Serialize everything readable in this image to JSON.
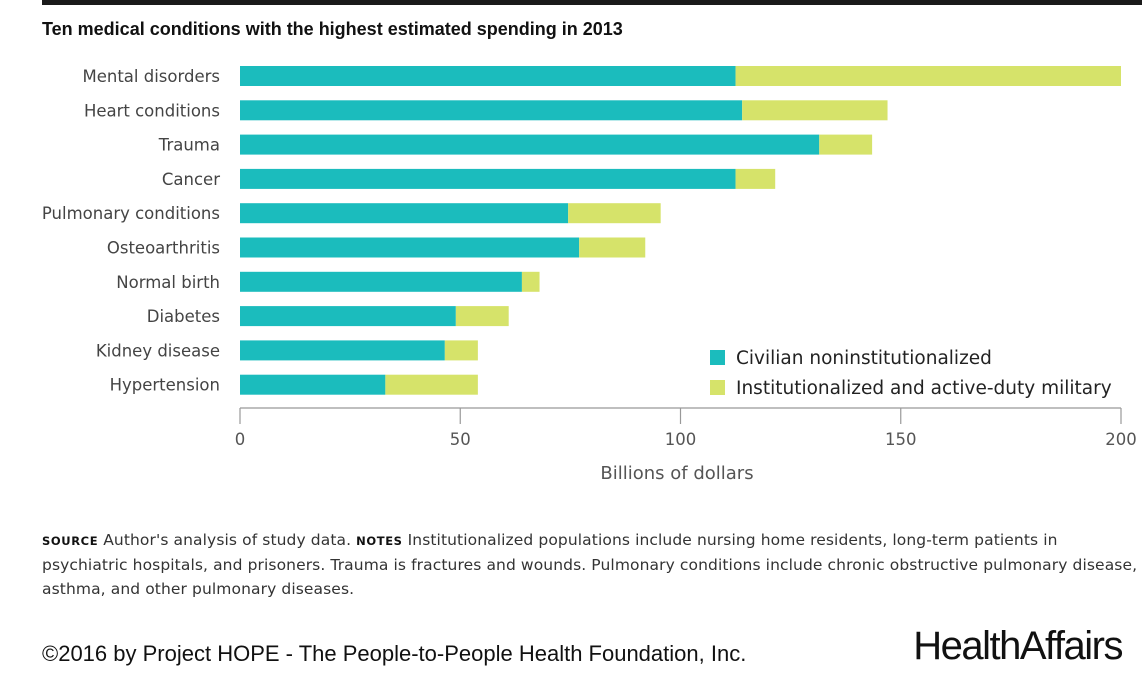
{
  "header": {
    "title": "Ten medical conditions with the highest estimated spending in 2013"
  },
  "chart_data": {
    "type": "bar",
    "orientation": "horizontal",
    "stacked": true,
    "categories": [
      "Mental disorders",
      "Heart conditions",
      "Trauma",
      "Cancer",
      "Pulmonary conditions",
      "Osteoarthritis",
      "Normal birth",
      "Diabetes",
      "Kidney disease",
      "Hypertension"
    ],
    "series": [
      {
        "name": "Civilian noninstitutionalized",
        "color": "#1bbcbd",
        "values": [
          112.5,
          114,
          131.5,
          112.5,
          74.5,
          77,
          64,
          49,
          46.5,
          33
        ]
      },
      {
        "name": "Institutionalized and active-duty military",
        "color": "#d6e36a",
        "values": [
          87.5,
          33,
          12,
          9,
          21,
          15,
          4,
          12,
          7.5,
          21
        ]
      }
    ],
    "xlabel": "Billions of dollars",
    "xlim": [
      0,
      200
    ],
    "xticks": [
      "0",
      "50",
      "100",
      "150",
      "200"
    ],
    "legend_position": "bottom-right",
    "grid": false
  },
  "footer": {
    "source_tag": "source",
    "source_text": "Author's analysis of study data.",
    "notes_tag": "notes",
    "notes_text": "Institutionalized populations include nursing home residents, long-term patients in psychiatric hospitals, and prisoners. Trauma is fractures and wounds. Pulmonary conditions include chronic obstructive pulmonary disease, asthma, and other pulmonary diseases.",
    "copyright": "©2016 by Project HOPE - The People-to-People Health Foundation, Inc.",
    "logo": "HealthAffairs"
  }
}
